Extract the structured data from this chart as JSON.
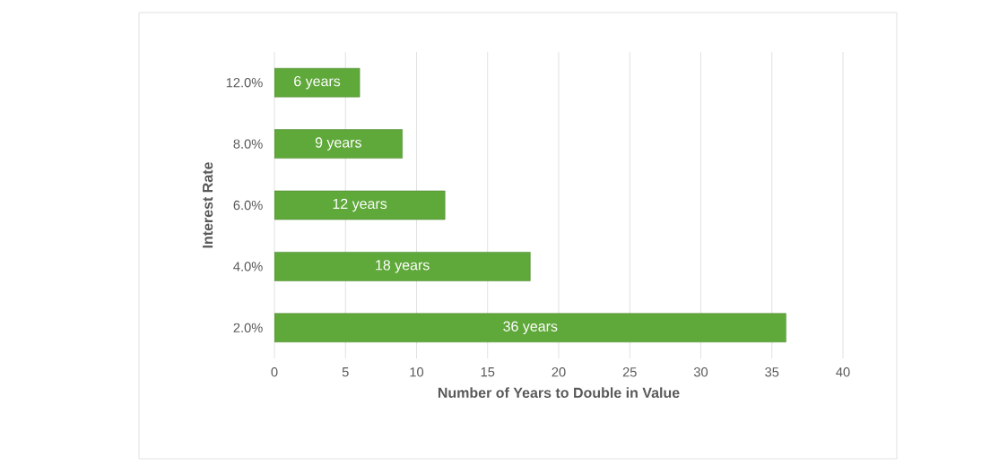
{
  "chart_data": {
    "type": "bar",
    "orientation": "horizontal",
    "xlabel": "Number of Years to Double in Value",
    "ylabel": "Interest Rate",
    "categories": [
      "12.0%",
      "8.0%",
      "6.0%",
      "4.0%",
      "2.0%"
    ],
    "values": [
      6,
      9,
      12,
      18,
      36
    ],
    "color": "#5fa83a",
    "value_labels": [
      "6 years",
      "9 years",
      "12 years",
      "18 years",
      "36 years"
    ],
    "xlim": [
      0,
      40
    ],
    "xticks": [
      0,
      5,
      10,
      15,
      20,
      25,
      30,
      35,
      40
    ],
    "grid": "x"
  }
}
